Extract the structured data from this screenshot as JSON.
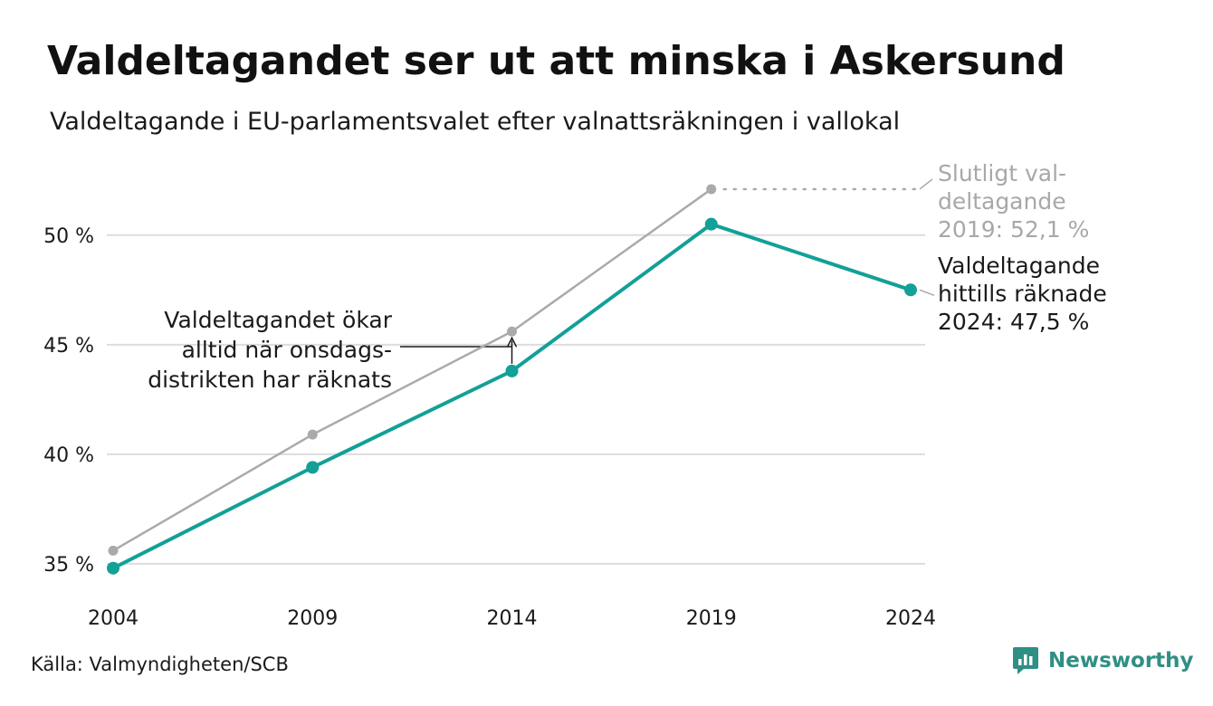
{
  "title": "Valdeltagandet ser ut att minska i Askersund",
  "subtitle": "Valdeltagande i EU-parlamentsvalet efter valnattsräkningen i vallokal",
  "source": "Källa: Valmyndigheten/SCB",
  "brand": {
    "name": "Newsworthy",
    "icon": "newsworthy-logo-icon",
    "color": "#2f8f84"
  },
  "colors": {
    "prelim": "#12a097",
    "final": "#aaaaaa",
    "grid": "#dddddd",
    "final_label": "#a8a8a8"
  },
  "chart_data": {
    "type": "line",
    "x": [
      "2004",
      "2009",
      "2014",
      "2019",
      "2024"
    ],
    "ylim": [
      34.5,
      52.8
    ],
    "yticks": [
      35,
      40,
      45,
      50
    ],
    "ytick_labels": [
      "35 %",
      "40 %",
      "45 %",
      "50 %"
    ],
    "grid": true,
    "series": [
      {
        "key": "final",
        "values": [
          35.6,
          40.9,
          45.6,
          52.1,
          null
        ]
      },
      {
        "key": "prelim",
        "values": [
          34.8,
          39.4,
          43.8,
          50.5,
          47.5
        ]
      }
    ],
    "annotations": {
      "final_label": [
        "Slutligt val-",
        "deltagande",
        "2019: 52,1 %"
      ],
      "prelim_label": [
        "Valdeltagande",
        "hittills räknade",
        "2024: 47,5 %"
      ],
      "gap_note": [
        "Valdeltagandet ökar",
        "alltid när onsdags-",
        "distrikten har räknats"
      ]
    }
  }
}
